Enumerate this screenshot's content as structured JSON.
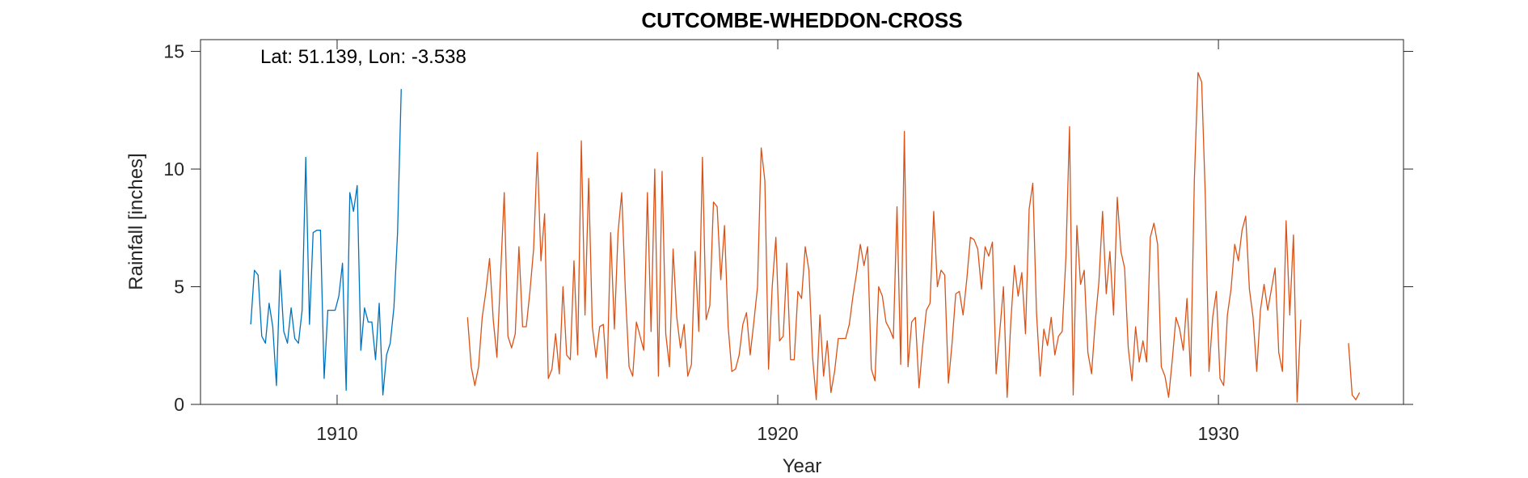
{
  "chart_data": {
    "type": "line",
    "title": "CUTCOMBE-WHEDDON-CROSS",
    "xlabel": "Year",
    "ylabel": "Rainfall [inches]",
    "annotation": "Lat: 51.139, Lon: -3.538",
    "xlim": [
      1906.9,
      1934.2
    ],
    "ylim": [
      0,
      15.5
    ],
    "xticks": [
      1910,
      1920,
      1930
    ],
    "yticks": [
      0,
      5,
      10,
      15
    ],
    "grid": false,
    "colors": {
      "series1": "#0072BD",
      "series2": "#D95319"
    },
    "series": [
      {
        "color": "#0072BD",
        "x_start": 1908.04,
        "step": 0.0833,
        "values": [
          3.4,
          5.7,
          5.5,
          2.9,
          2.6,
          4.3,
          3.3,
          0.8,
          5.7,
          3.1,
          2.6,
          4.1,
          2.8,
          2.6,
          4.0,
          10.5,
          3.4,
          7.3,
          7.4,
          7.4,
          1.1,
          4.0,
          4.0,
          4.0,
          4.6,
          6.0,
          0.6,
          9.0,
          8.2,
          9.3,
          2.3,
          4.1,
          3.5,
          3.5,
          1.9,
          4.3,
          0.4,
          2.1,
          2.6,
          4.1,
          7.3,
          13.4
        ]
      },
      {
        "color": "#D95319",
        "x_start": 1912.96,
        "step": 0.0833,
        "values": [
          3.7,
          1.6,
          0.8,
          1.6,
          3.7,
          4.8,
          6.2,
          3.6,
          2.0,
          5.5,
          9.0,
          2.9,
          2.4,
          3.0,
          6.7,
          3.3,
          3.3,
          4.8,
          6.6,
          10.7,
          6.1,
          8.1,
          1.1,
          1.5,
          3.0,
          1.3,
          5.0,
          2.1,
          1.9,
          6.1,
          2.1,
          11.2,
          3.8,
          9.6,
          3.3,
          2.0,
          3.3,
          3.4,
          1.1,
          7.3,
          3.2,
          7.3,
          9.0,
          4.8,
          1.6,
          1.2,
          3.5,
          2.9,
          2.3,
          9.0,
          3.1,
          10.0,
          1.2,
          9.9,
          3.0,
          1.6,
          6.6,
          3.7,
          2.4,
          3.4,
          1.2,
          1.7,
          6.5,
          3.1,
          10.5,
          3.6,
          4.2,
          8.6,
          8.4,
          5.3,
          7.6,
          3.3,
          1.4,
          1.5,
          2.1,
          3.4,
          3.9,
          2.1,
          3.5,
          5.0,
          10.9,
          9.5,
          1.5,
          5.0,
          7.1,
          2.7,
          2.9,
          6.0,
          1.9,
          1.9,
          4.8,
          4.5,
          6.7,
          5.7,
          2.0,
          0.2,
          3.8,
          1.2,
          2.7,
          0.5,
          1.4,
          2.8,
          2.8,
          2.8,
          3.4,
          4.6,
          5.6,
          6.8,
          5.9,
          6.7,
          1.5,
          1.0,
          5.0,
          4.6,
          3.5,
          3.2,
          2.8,
          8.4,
          1.7,
          11.6,
          1.6,
          3.5,
          3.7,
          0.7,
          2.5,
          4.0,
          4.3,
          8.2,
          5.0,
          5.7,
          5.5,
          0.9,
          2.6,
          4.7,
          4.8,
          3.8,
          5.3,
          7.1,
          7.0,
          6.6,
          4.9,
          6.7,
          6.3,
          6.9,
          1.3,
          3.1,
          5.0,
          0.3,
          3.5,
          5.9,
          4.6,
          5.6,
          3.0,
          8.3,
          9.4,
          3.9,
          1.2,
          3.2,
          2.5,
          3.7,
          2.1,
          2.9,
          3.1,
          6.2,
          11.8,
          0.4,
          7.6,
          5.1,
          5.7,
          2.2,
          1.3,
          3.5,
          5.2,
          8.2,
          4.7,
          6.5,
          3.8,
          8.8,
          6.5,
          5.8,
          2.4,
          1.0,
          3.3,
          1.8,
          2.7,
          1.8,
          7.1,
          7.7,
          6.8,
          1.6,
          1.2,
          0.3,
          1.9,
          3.7,
          3.2,
          2.3,
          4.5,
          1.2,
          9.5,
          14.1,
          13.7,
          8.8,
          1.4,
          3.7,
          4.8,
          1.1,
          0.8,
          3.8,
          4.9,
          6.8,
          6.1,
          7.4,
          8.0,
          4.9,
          3.7,
          1.4,
          4.0,
          5.1,
          4.0,
          4.9,
          5.8,
          2.2,
          1.4,
          7.8,
          3.8,
          7.2,
          0.1,
          3.6,
          null,
          null,
          null,
          null,
          null,
          null,
          null,
          null,
          null,
          null,
          null,
          null,
          2.6,
          0.4,
          0.2,
          0.5
        ]
      }
    ]
  }
}
